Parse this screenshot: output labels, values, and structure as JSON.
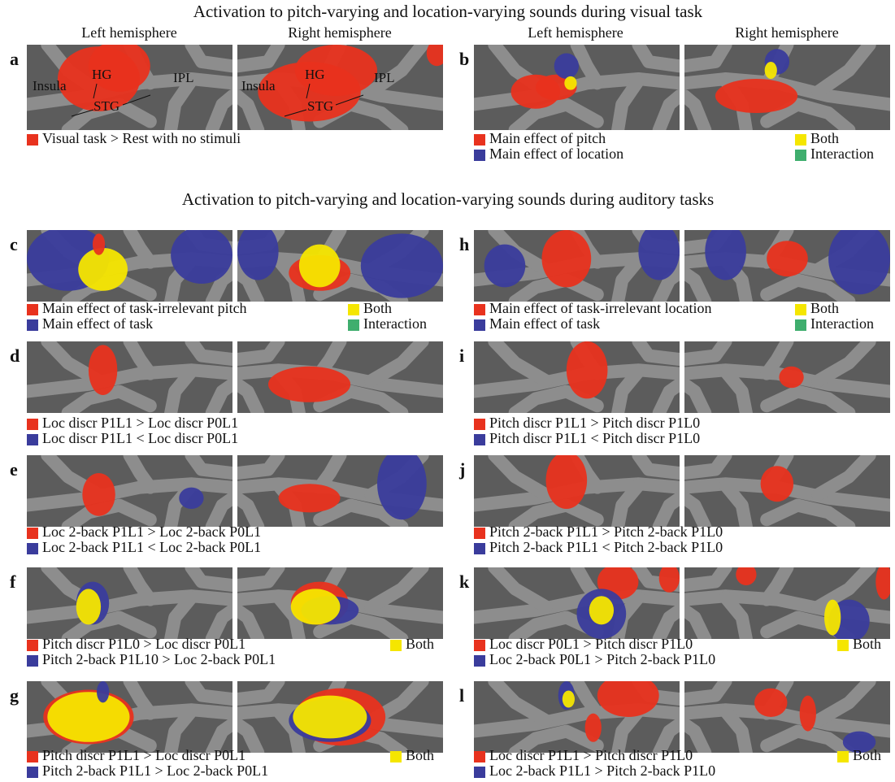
{
  "titles": [
    "Activation to pitch-varying and location-varying sounds during visual task",
    "Activation to pitch-varying and location-varying sounds during auditory tasks"
  ],
  "hemisphere_headers": [
    [
      "Left hemisphere",
      "Right hemisphere"
    ],
    [
      "Left hemisphere",
      "Right hemisphere"
    ]
  ],
  "panels": [
    {
      "letter": "a",
      "region_labels": [
        [
          "Insula",
          "HG",
          "STG",
          "IPL"
        ],
        [
          "Insula",
          "HG",
          "STG",
          "IPL"
        ]
      ],
      "legend": [
        {
          "text": "Visual task > Rest with no stimuli",
          "color": "#e8321e"
        }
      ]
    },
    {
      "letter": "b",
      "legend": [
        {
          "text": "Main effect of pitch",
          "color": "#e8321e"
        },
        {
          "text": "Main effect of location",
          "color": "#3a3c9c"
        },
        {
          "text": "Both",
          "color": "#f5e600"
        },
        {
          "text": "Interaction",
          "color": "#3fae6e"
        }
      ]
    },
    {
      "letter": "c",
      "legend": [
        {
          "text": "Main effect of task-irrelevant pitch",
          "color": "#e8321e"
        },
        {
          "text": "Main effect of task",
          "color": "#3a3c9c"
        },
        {
          "text": "Both",
          "color": "#f5e600"
        },
        {
          "text": "Interaction",
          "color": "#3fae6e"
        }
      ]
    },
    {
      "letter": "d",
      "legend": [
        {
          "text": "Loc discr P1L1 > Loc discr P0L1",
          "color": "#e8321e"
        },
        {
          "text": "Loc discr P1L1 < Loc discr P0L1",
          "color": "#3a3c9c"
        }
      ]
    },
    {
      "letter": "e",
      "legend": [
        {
          "text": "Loc 2-back P1L1 > Loc 2-back P0L1",
          "color": "#e8321e"
        },
        {
          "text": "Loc 2-back P1L1 < Loc 2-back P0L1",
          "color": "#3a3c9c"
        }
      ]
    },
    {
      "letter": "f",
      "legend": [
        {
          "text": "Pitch discr P1L0 > Loc discr P0L1",
          "color": "#e8321e"
        },
        {
          "text": "Pitch 2-back  P1L10 > Loc 2-back P0L1",
          "color": "#3a3c9c"
        },
        {
          "text": "Both",
          "color": "#f5e600"
        }
      ]
    },
    {
      "letter": "g",
      "legend": [
        {
          "text": "Pitch discr P1L1 > Loc discr P0L1",
          "color": "#e8321e"
        },
        {
          "text": "Pitch 2-back  P1L1 > Loc 2-back P0L1",
          "color": "#3a3c9c"
        },
        {
          "text": "Both",
          "color": "#f5e600"
        }
      ]
    },
    {
      "letter": "h",
      "legend": [
        {
          "text": "Main effect of task-irrelevant location",
          "color": "#e8321e"
        },
        {
          "text": "Main effect of task",
          "color": "#3a3c9c"
        },
        {
          "text": "Both",
          "color": "#f5e600"
        },
        {
          "text": "Interaction",
          "color": "#3fae6e"
        }
      ]
    },
    {
      "letter": "i",
      "legend": [
        {
          "text": "Pitch discr P1L1 > Pitch discr P1L0",
          "color": "#e8321e"
        },
        {
          "text": "Pitch discr P1L1 < Pitch discr P1L0",
          "color": "#3a3c9c"
        }
      ]
    },
    {
      "letter": "j",
      "legend": [
        {
          "text": "Pitch 2-back P1L1 > Pitch 2-back P1L0",
          "color": "#e8321e"
        },
        {
          "text": "Pitch 2-back P1L1 < Pitch 2-back P1L0",
          "color": "#3a3c9c"
        }
      ]
    },
    {
      "letter": "k",
      "legend": [
        {
          "text": "Loc discr P0L1 > Pitch discr P1L0",
          "color": "#e8321e"
        },
        {
          "text": "Loc 2-back  P0L1 > Pitch 2-back P1L0",
          "color": "#3a3c9c"
        },
        {
          "text": "Both",
          "color": "#f5e600"
        }
      ]
    },
    {
      "letter": "l",
      "legend": [
        {
          "text": "Loc discr P1L1 > Pitch discr P1L0",
          "color": "#e8321e"
        },
        {
          "text": "Loc 2-back  P1L1 > Pitch 2-back P1L0",
          "color": "#3a3c9c"
        },
        {
          "text": "Both",
          "color": "#f5e600"
        }
      ]
    }
  ]
}
